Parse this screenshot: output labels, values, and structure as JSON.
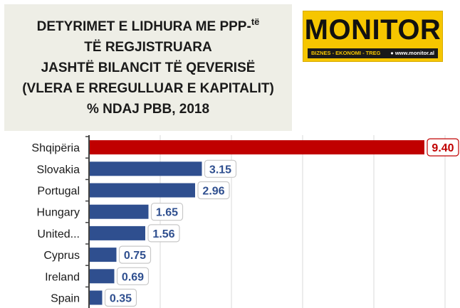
{
  "title": {
    "line1_main": "DETYRIMET E LIDHURA ME  PPP-",
    "line1_sup": "të",
    "line2": "TË REGJISTRUARA",
    "line3": "JASHTË BILANCIT TË QEVERISË",
    "line4": "(VLERA E RREGULLUAR E KAPITALIT)",
    "line5": "% NDAJ PBB, 2018"
  },
  "logo": {
    "word": "MONITOR",
    "tagline": "BIZNES - EKONOMI - TREG",
    "website": "www.monitor.al",
    "icon": "globe-icon"
  },
  "colors": {
    "highlight_bar": "#c00000",
    "bar": "#2f4f8f",
    "highlight_label_border": "#c00000",
    "label_text_dark": "#2f4f8f",
    "label_text_highlight": "#c00000",
    "title_background": "#eeeee6",
    "logo_background": "#f6c600"
  },
  "chart_data": {
    "type": "bar",
    "orientation": "horizontal",
    "categories": [
      "Shqipëria",
      "Slovakia",
      "Portugal",
      "Hungary",
      "United...",
      "Cyprus",
      "Ireland",
      "Spain"
    ],
    "values": [
      9.4,
      3.15,
      2.96,
      1.65,
      1.56,
      0.75,
      0.69,
      0.35
    ],
    "value_labels": [
      "9.40",
      "3.15",
      "2.96",
      "1.65",
      "1.56",
      "0.75",
      "0.69",
      "0.35"
    ],
    "highlight_category": "Shqipëria",
    "xlim": [
      0,
      10
    ],
    "grid": true
  }
}
